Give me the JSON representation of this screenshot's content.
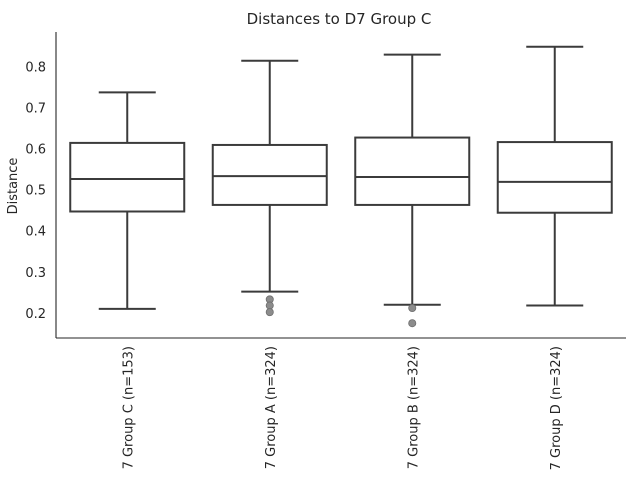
{
  "chart_data": {
    "type": "box",
    "title": "Distances to D7 Group C",
    "xlabel": "",
    "ylabel": "Distance",
    "ylim": [
      0.14,
      0.885
    ],
    "yticks": [
      0.2,
      0.3,
      0.4,
      0.5,
      0.6,
      0.7,
      0.8
    ],
    "ytick_labels": [
      "0.2",
      "0.3",
      "0.4",
      "0.5",
      "0.6",
      "0.7",
      "0.8"
    ],
    "grid": false,
    "categories": [
      "7 Group C (n=153)",
      "7 Group A (n=324)",
      "7 Group B (n=324)",
      "7 Group D (n=324)"
    ],
    "boxes": [
      {
        "category": "7 Group C (n=153)",
        "whislo": 0.211,
        "q1": 0.448,
        "median": 0.527,
        "q3": 0.615,
        "whishi": 0.738,
        "fliers": []
      },
      {
        "category": "7 Group A (n=324)",
        "whislo": 0.253,
        "q1": 0.464,
        "median": 0.534,
        "q3": 0.61,
        "whishi": 0.815,
        "fliers": [
          0.234,
          0.219,
          0.203
        ]
      },
      {
        "category": "7 Group B (n=324)",
        "whislo": 0.221,
        "q1": 0.464,
        "median": 0.532,
        "q3": 0.628,
        "whishi": 0.83,
        "fliers": [
          0.213,
          0.176
        ]
      },
      {
        "category": "7 Group D (n=324)",
        "whislo": 0.219,
        "q1": 0.445,
        "median": 0.52,
        "q3": 0.617,
        "whishi": 0.849,
        "fliers": []
      }
    ]
  }
}
